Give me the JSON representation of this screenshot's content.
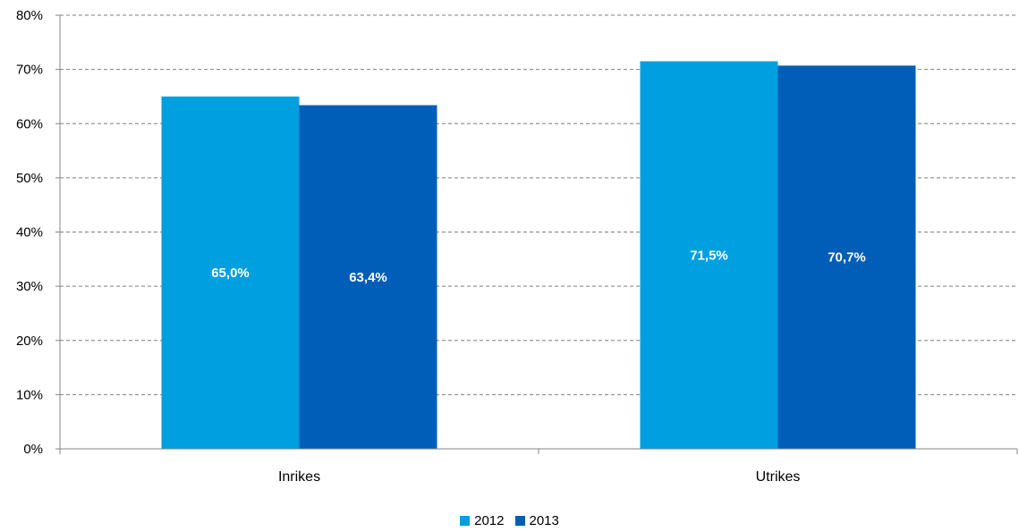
{
  "chart_data": {
    "type": "bar",
    "title": "",
    "xlabel": "",
    "ylabel": "",
    "categories": [
      "Inrikes",
      "Utrikes"
    ],
    "series": [
      {
        "name": "2012",
        "values": [
          65.0,
          71.5
        ],
        "labels": [
          "65,0%",
          "71,5%"
        ],
        "color": "#009FDF"
      },
      {
        "name": "2013",
        "values": [
          63.4,
          70.7
        ],
        "labels": [
          "63,4%",
          "70,7%"
        ],
        "color": "#005EB8"
      }
    ],
    "ylim": [
      0,
      80
    ],
    "yticks": [
      0,
      10,
      20,
      30,
      40,
      50,
      60,
      70,
      80
    ],
    "ytick_labels": [
      "0%",
      "10%",
      "20%",
      "30%",
      "40%",
      "50%",
      "60%",
      "70%",
      "80%"
    ],
    "grid": true,
    "legend_position": "bottom-center"
  }
}
